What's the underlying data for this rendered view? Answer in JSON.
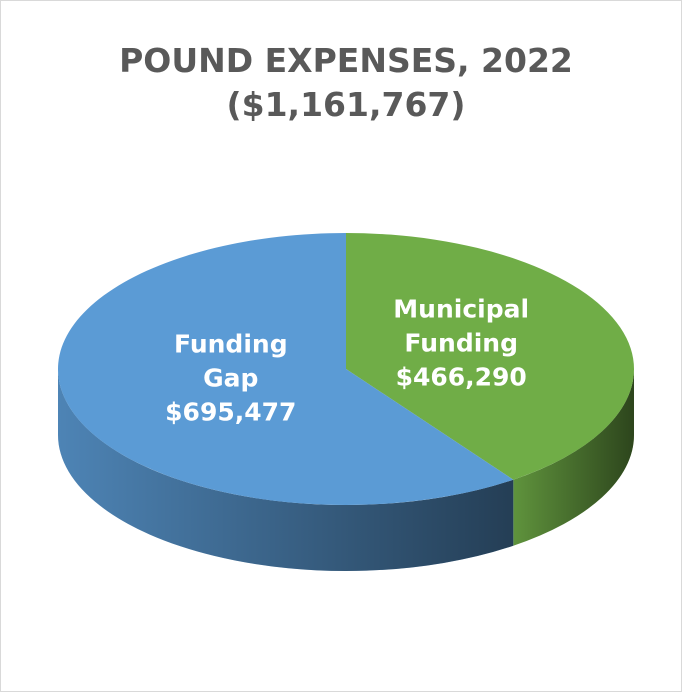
{
  "chart_data": {
    "type": "pie3d",
    "title": "POUND EXPENSES, 2022",
    "subtitle": "($1,161,767)",
    "categories": [
      "Municipal Funding",
      "Funding Gap"
    ],
    "values": [
      466290,
      695477
    ],
    "value_labels": [
      "$466,290",
      "$695,477"
    ],
    "colors": [
      "#70ad47",
      "#5b9bd5"
    ]
  }
}
